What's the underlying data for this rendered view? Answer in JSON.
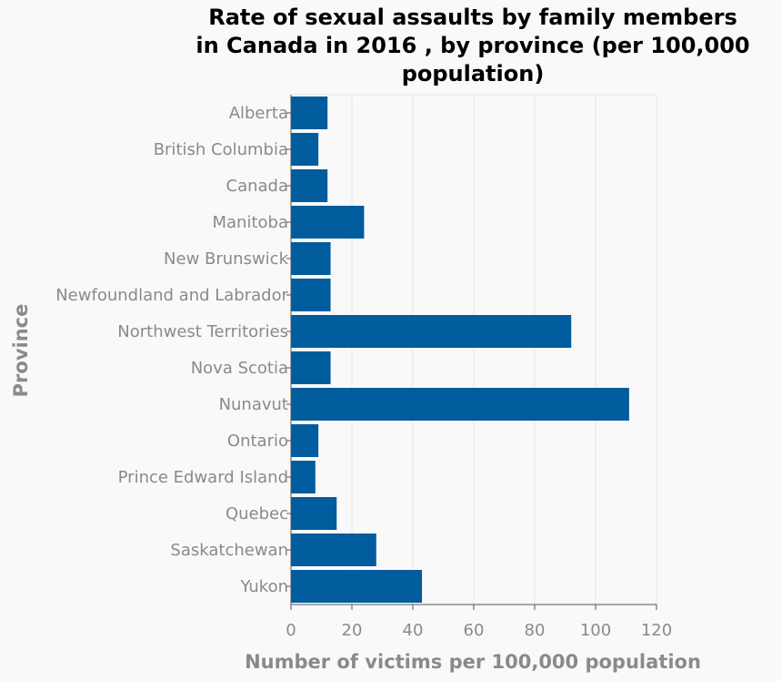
{
  "chart_data": {
    "type": "bar",
    "orientation": "horizontal",
    "title_lines": [
      "Rate of sexual assaults by family members",
      "in Canada in 2016 , by province (per 100,000",
      "population)"
    ],
    "xlabel": "Number of victims per 100,000 population",
    "ylabel": "Province",
    "xlim": [
      0,
      120
    ],
    "xticks": [
      0,
      20,
      40,
      60,
      80,
      100,
      120
    ],
    "grid": true,
    "bar_color": "#015c9e",
    "categories": [
      "Alberta",
      "British Columbia",
      "Canada",
      "Manitoba",
      "New Brunswick",
      "Newfoundland and Labrador",
      "Northwest Territories",
      "Nova Scotia",
      "Nunavut",
      "Ontario",
      "Prince Edward Island",
      "Quebec",
      "Saskatchewan",
      "Yukon"
    ],
    "values": [
      12,
      9,
      12,
      24,
      13,
      13,
      92,
      13,
      111,
      9,
      8,
      15,
      28,
      43
    ]
  }
}
